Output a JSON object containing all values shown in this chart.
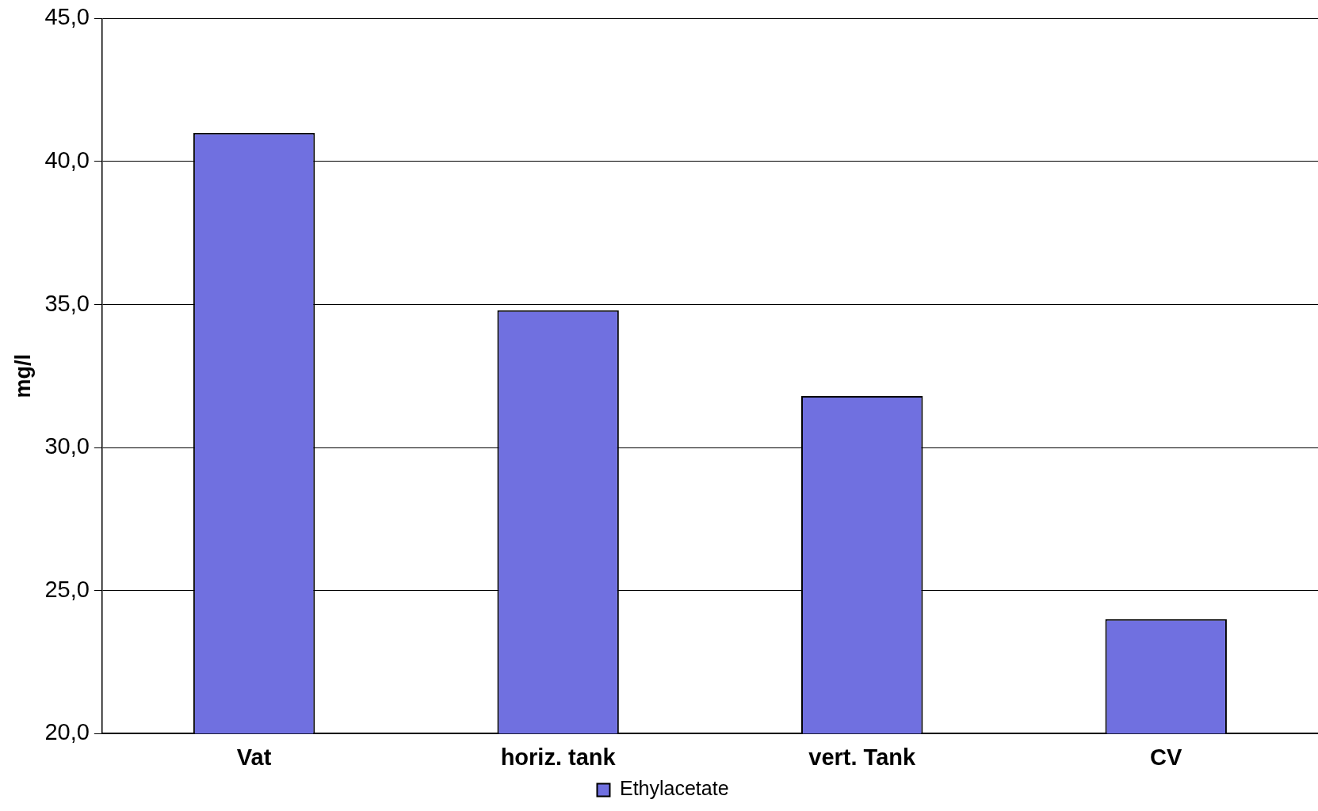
{
  "chart_data": {
    "type": "bar",
    "ylabel": "mg/l",
    "categories": [
      "Vat",
      "horiz. tank",
      "vert. Tank",
      "CV"
    ],
    "series": [
      {
        "name": "Ethylacetate",
        "color": "#7070e0",
        "values": [
          41.0,
          34.8,
          31.8,
          24.0
        ]
      }
    ],
    "ylim": [
      20,
      45
    ],
    "yticks": [
      {
        "value": 20,
        "label": "20,0"
      },
      {
        "value": 25,
        "label": "25,0"
      },
      {
        "value": 30,
        "label": "30,0"
      },
      {
        "value": 35,
        "label": "35,0"
      },
      {
        "value": 40,
        "label": "40,0"
      },
      {
        "value": 45,
        "label": "45,0"
      }
    ],
    "grid": "y",
    "legend": "bottom"
  }
}
